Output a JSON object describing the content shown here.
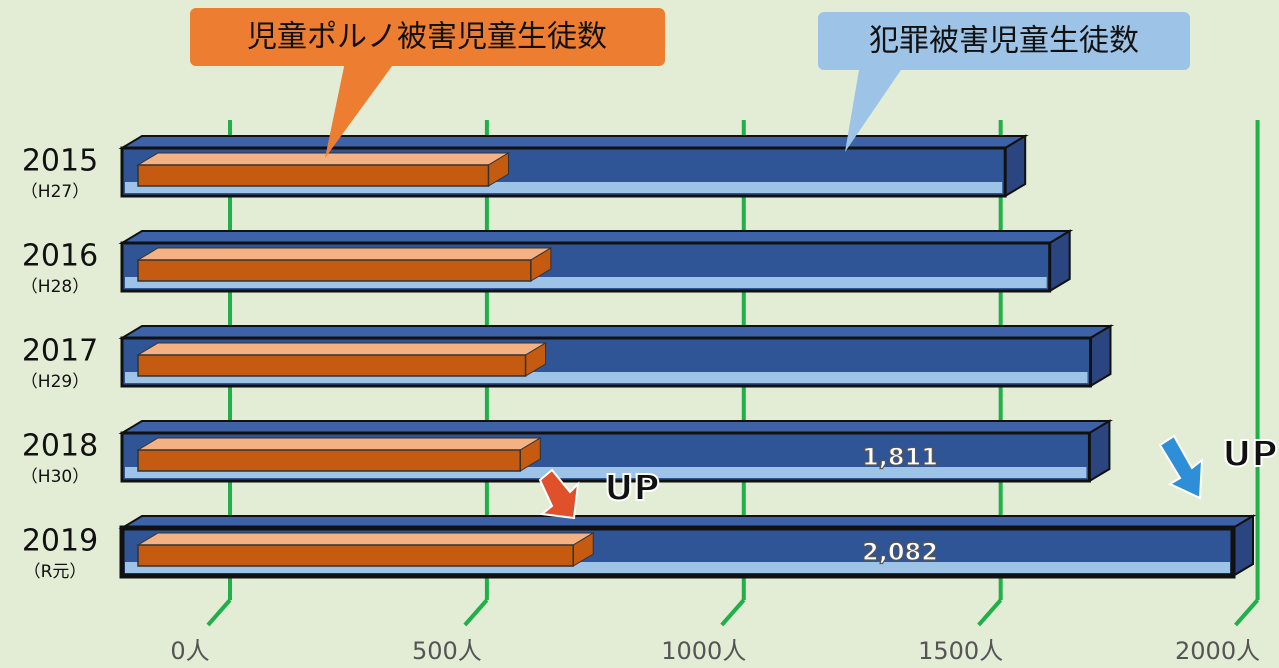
{
  "chart_data": {
    "type": "bar3d",
    "categories": [
      "2015",
      "2016",
      "2017",
      "2018",
      "2019"
    ],
    "category_sublabels": [
      "（H27）",
      "（H28）",
      "（H29）",
      "（H30）",
      "（R元）"
    ],
    "series": [
      {
        "name": "犯罪被害児童生徒数",
        "color": "#2f5597",
        "values": [
          1652,
          1736,
          1813,
          1811,
          2082
        ],
        "value_labels": [
          null,
          null,
          null,
          "1,811",
          "2,082"
        ]
      },
      {
        "name": "児童ポルノ被害児童生徒数",
        "color": "#c55a11",
        "values": [
          620,
          700,
          690,
          680,
          780
        ]
      }
    ],
    "xlim": [
      0,
      2082
    ],
    "xticks": [
      {
        "value": 0,
        "label": "0人"
      },
      {
        "value": 500,
        "label": "500人"
      },
      {
        "value": 1000,
        "label": "1000人"
      },
      {
        "value": 1500,
        "label": "1500人"
      },
      {
        "value": 2000,
        "label": "2000人"
      }
    ],
    "grid": true,
    "annotations": [
      "UP",
      "UP"
    ]
  }
}
